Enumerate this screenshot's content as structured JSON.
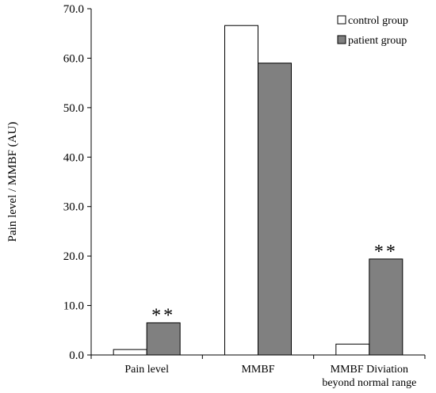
{
  "chart_data": {
    "type": "bar",
    "title": "",
    "xlabel": "",
    "ylabel": "Pain level / MMBF (AU)",
    "ylim": [
      0,
      70
    ],
    "yticks": [
      "0.0",
      "10.0",
      "20.0",
      "30.0",
      "40.0",
      "50.0",
      "60.0",
      "70.0"
    ],
    "categories": [
      [
        "Pain level"
      ],
      [
        "MMBF"
      ],
      [
        "MMBF Diviation",
        "beyond normal range"
      ]
    ],
    "series": [
      {
        "name": "control group",
        "values": [
          1.1,
          66.6,
          2.2
        ],
        "color": "#ffffff"
      },
      {
        "name": "patient group",
        "values": [
          6.5,
          59.0,
          19.4
        ],
        "color": "#808080"
      }
    ],
    "annotations": [
      {
        "text": "**",
        "category_index": 0,
        "series_index": 1
      },
      {
        "text": "**",
        "category_index": 2,
        "series_index": 1
      }
    ],
    "legend_position": "top-right",
    "grid": false
  }
}
